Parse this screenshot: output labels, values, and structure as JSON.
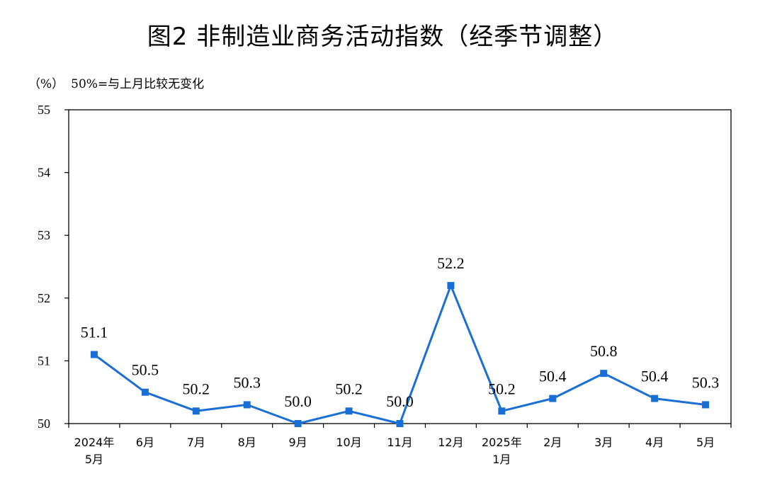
{
  "chart_data": {
    "type": "line",
    "title": "图2 非制造业商务活动指数（经季节调整）",
    "unit_label": "（%）",
    "note": "50%=与上月比较无变化",
    "categories": [
      [
        "2024年",
        "5月"
      ],
      [
        "6月"
      ],
      [
        "7月"
      ],
      [
        "8月"
      ],
      [
        "9月"
      ],
      [
        "10月"
      ],
      [
        "11月"
      ],
      [
        "12月"
      ],
      [
        "2025年",
        "1月"
      ],
      [
        "2月"
      ],
      [
        "3月"
      ],
      [
        "4月"
      ],
      [
        "5月"
      ]
    ],
    "series": [
      {
        "values": [
          51.1,
          50.5,
          50.2,
          50.3,
          50.0,
          50.2,
          50.0,
          52.2,
          50.2,
          50.4,
          50.8,
          50.4,
          50.3
        ],
        "labels": [
          "51.1",
          "50.5",
          "50.2",
          "50.3",
          "50.0",
          "50.2",
          "50.0",
          "52.2",
          "50.2",
          "50.4",
          "50.8",
          "50.4",
          "50.3"
        ],
        "color": "#1a6fd6"
      }
    ],
    "ylim": [
      50,
      55
    ],
    "yticks": [
      50,
      51,
      52,
      53,
      54,
      55
    ],
    "ytick_labels": [
      "50",
      "51",
      "52",
      "53",
      "54",
      "55"
    ],
    "grid": false,
    "legend": "none"
  }
}
